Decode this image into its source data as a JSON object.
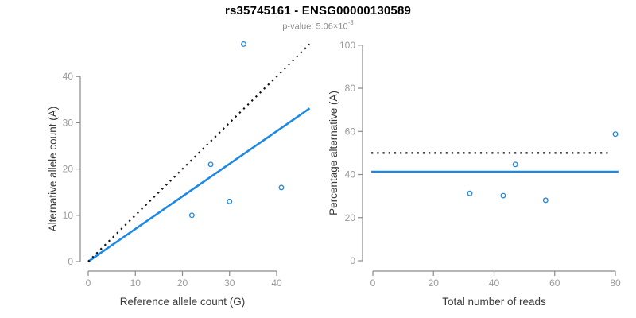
{
  "header": {
    "title": "rs35745161 - ENSG00000130589",
    "subtitle_base": "p-value: 5.06×10",
    "subtitle_exponent": "-3"
  },
  "colors": {
    "accent_blue": "#1E88E5",
    "dotted_black": "#111111",
    "axis_line_gray": "#8a8a8a",
    "tick_label_gray": "#9b9b9b",
    "axis_title_dark": "#3a3a3a",
    "subtitle_gray": "#8e8e8e"
  },
  "chart_data": [
    {
      "type": "scatter",
      "panel": "allele-counts",
      "xlabel": "Reference allele count (G)",
      "ylabel": "Alternative allele count (A)",
      "xlim": [
        0,
        40
      ],
      "ylim": [
        0,
        40
      ],
      "xticks": [
        0,
        10,
        20,
        30,
        40
      ],
      "yticks": [
        0,
        10,
        20,
        30,
        40
      ],
      "grid": false,
      "legend": "none",
      "points": [
        [
          22,
          10
        ],
        [
          26,
          21
        ],
        [
          30,
          13
        ],
        [
          33,
          47
        ],
        [
          41,
          16
        ]
      ],
      "lines": [
        {
          "name": "fitted-ratio-line",
          "style": "solid",
          "color_key": "accent_blue",
          "x_start": 0,
          "y_start": 0,
          "x_end": 47,
          "y_end": 33.1
        },
        {
          "name": "identity-line",
          "style": "dotted",
          "color_key": "dotted_black",
          "x_start": 0,
          "y_start": 0,
          "x_end": 47,
          "y_end": 47
        }
      ]
    },
    {
      "type": "scatter",
      "panel": "percentage-alternative",
      "xlabel": "Total number of reads",
      "ylabel": "Percentage alternative (A)",
      "xlim": [
        0,
        80
      ],
      "ylim": [
        0,
        100
      ],
      "xticks": [
        0,
        20,
        40,
        60,
        80
      ],
      "yticks": [
        0,
        20,
        40,
        60,
        80,
        100
      ],
      "grid": false,
      "legend": "none",
      "points": [
        [
          32,
          31.25
        ],
        [
          43,
          30.23
        ],
        [
          47,
          44.68
        ],
        [
          57,
          28.07
        ],
        [
          80,
          58.75
        ]
      ],
      "lines": [
        {
          "name": "mean-percentage-line",
          "style": "solid",
          "color_key": "accent_blue",
          "x_start": -0.5,
          "y_start": 41.3,
          "x_end": 81,
          "y_end": 41.3
        },
        {
          "name": "expected-50-line",
          "style": "dotted",
          "color_key": "dotted_black",
          "x_start": -0.5,
          "y_start": 50,
          "x_end": 78,
          "y_end": 50
        }
      ]
    }
  ]
}
